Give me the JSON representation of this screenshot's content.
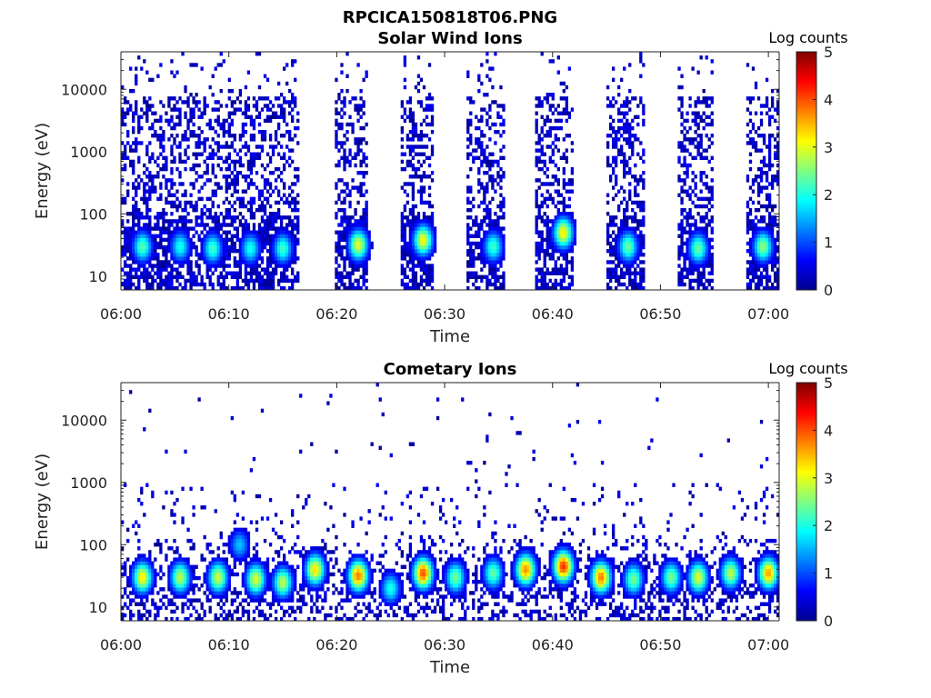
{
  "figure": {
    "title": "RPCICA150818T06.PNG"
  },
  "chart_data": [
    {
      "type": "heatmap",
      "title": "Solar Wind Ions",
      "xlabel": "Time",
      "ylabel": "Energy (eV)",
      "xlim": [
        "06:00",
        "07:01"
      ],
      "ylim": [
        6,
        40000
      ],
      "y_scale": "log",
      "x_ticks": [
        "06:00",
        "06:10",
        "06:20",
        "06:30",
        "06:40",
        "06:50",
        "07:00"
      ],
      "y_ticks": [
        "10",
        "100",
        "1000",
        "10000"
      ],
      "colorbar": {
        "label": "Log counts",
        "range": [
          0,
          5
        ],
        "ticks": [
          "0",
          "1",
          "2",
          "3",
          "4",
          "5"
        ],
        "colormap": [
          "#00008f",
          "#0000ff",
          "#0080ff",
          "#00ffff",
          "#80ff80",
          "#ffff00",
          "#ff8000",
          "#ff0000",
          "#800000"
        ]
      },
      "active_intervals": [
        {
          "start": "06:00",
          "end": "06:16.5"
        },
        {
          "start": "06:19.7",
          "end": "06:23"
        },
        {
          "start": "06:26",
          "end": "06:29"
        },
        {
          "start": "06:32",
          "end": "06:35.5"
        },
        {
          "start": "06:38.5",
          "end": "06:42"
        },
        {
          "start": "06:45",
          "end": "06:48.5"
        },
        {
          "start": "06:51.5",
          "end": "06:55"
        },
        {
          "start": "06:58",
          "end": "07:01"
        }
      ],
      "peaks": [
        {
          "time": "06:02",
          "energy": 30,
          "log_counts": 2.3
        },
        {
          "time": "06:05.5",
          "energy": 30,
          "log_counts": 2.0
        },
        {
          "time": "06:08.5",
          "energy": 28,
          "log_counts": 2.2
        },
        {
          "time": "06:12",
          "energy": 28,
          "log_counts": 2.0
        },
        {
          "time": "06:15",
          "energy": 28,
          "log_counts": 2.2
        },
        {
          "time": "06:22",
          "energy": 32,
          "log_counts": 3.0
        },
        {
          "time": "06:28",
          "energy": 38,
          "log_counts": 3.1
        },
        {
          "time": "06:34.5",
          "energy": 30,
          "log_counts": 2.2
        },
        {
          "time": "06:41",
          "energy": 50,
          "log_counts": 3.2
        },
        {
          "time": "06:47",
          "energy": 30,
          "log_counts": 2.4
        },
        {
          "time": "06:53.5",
          "energy": 28,
          "log_counts": 2.4
        },
        {
          "time": "06:59.5",
          "energy": 30,
          "log_counts": 2.6
        }
      ]
    },
    {
      "type": "heatmap",
      "title": "Cometary Ions",
      "xlabel": "Time",
      "ylabel": "Energy (eV)",
      "xlim": [
        "06:00",
        "07:01"
      ],
      "ylim": [
        6,
        40000
      ],
      "y_scale": "log",
      "x_ticks": [
        "06:00",
        "06:10",
        "06:20",
        "06:30",
        "06:40",
        "06:50",
        "07:00"
      ],
      "y_ticks": [
        "10",
        "100",
        "1000",
        "10000"
      ],
      "colorbar": {
        "label": "Log counts",
        "range": [
          0,
          5
        ],
        "ticks": [
          "0",
          "1",
          "2",
          "3",
          "4",
          "5"
        ],
        "colormap": [
          "#00008f",
          "#0000ff",
          "#0080ff",
          "#00ffff",
          "#80ff80",
          "#ffff00",
          "#ff8000",
          "#ff0000",
          "#800000"
        ]
      },
      "peaks": [
        {
          "time": "06:02",
          "energy": 30,
          "log_counts": 3.2
        },
        {
          "time": "06:05.5",
          "energy": 30,
          "log_counts": 2.8
        },
        {
          "time": "06:09",
          "energy": 30,
          "log_counts": 2.9
        },
        {
          "time": "06:11",
          "energy": 100,
          "log_counts": 1.6
        },
        {
          "time": "06:12.5",
          "energy": 28,
          "log_counts": 3.0
        },
        {
          "time": "06:15",
          "energy": 25,
          "log_counts": 2.8
        },
        {
          "time": "06:18",
          "energy": 40,
          "log_counts": 3.3
        },
        {
          "time": "06:22",
          "energy": 32,
          "log_counts": 3.8
        },
        {
          "time": "06:25",
          "energy": 20,
          "log_counts": 2.0
        },
        {
          "time": "06:28",
          "energy": 35,
          "log_counts": 4.0
        },
        {
          "time": "06:31",
          "energy": 30,
          "log_counts": 2.5
        },
        {
          "time": "06:34.5",
          "energy": 35,
          "log_counts": 2.4
        },
        {
          "time": "06:37.5",
          "energy": 40,
          "log_counts": 3.7
        },
        {
          "time": "06:41",
          "energy": 45,
          "log_counts": 4.2
        },
        {
          "time": "06:44.5",
          "energy": 30,
          "log_counts": 3.8
        },
        {
          "time": "06:47.5",
          "energy": 28,
          "log_counts": 2.5
        },
        {
          "time": "06:51",
          "energy": 30,
          "log_counts": 2.5
        },
        {
          "time": "06:53.5",
          "energy": 30,
          "log_counts": 3.0
        },
        {
          "time": "06:56.5",
          "energy": 35,
          "log_counts": 2.8
        },
        {
          "time": "07:00",
          "energy": 35,
          "log_counts": 3.6
        }
      ]
    }
  ]
}
